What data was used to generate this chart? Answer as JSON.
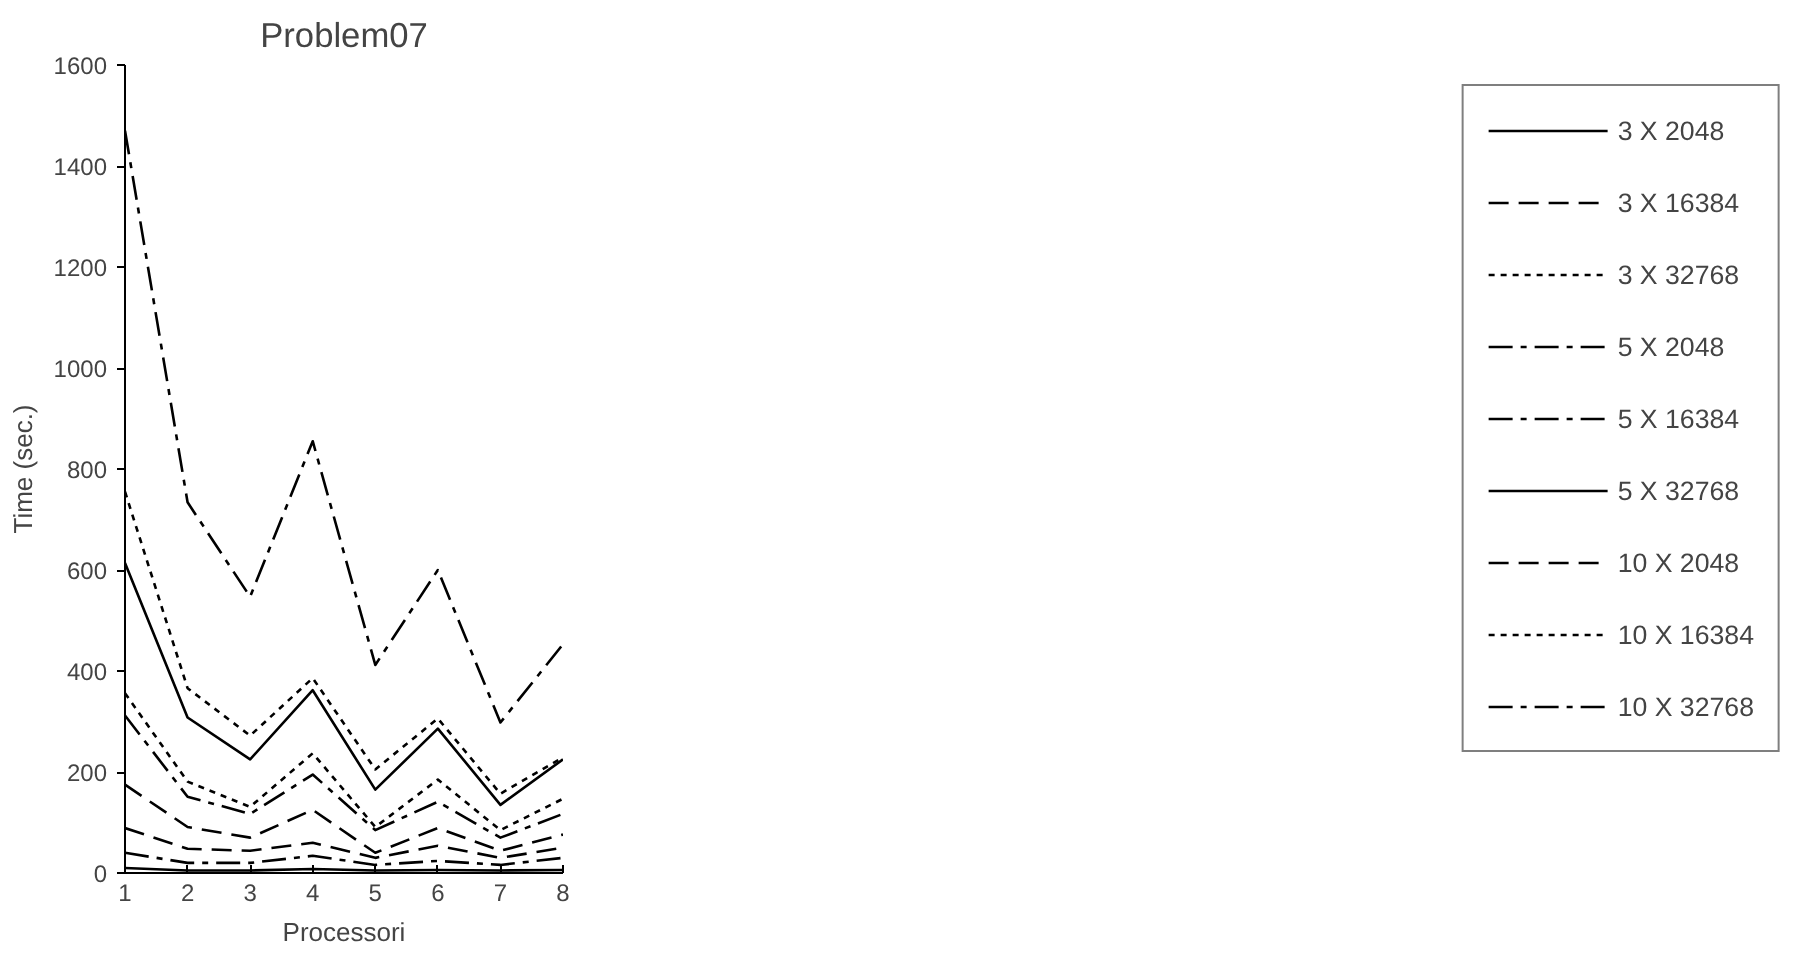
{
  "chart_data": {
    "type": "line",
    "title": "Problem07",
    "xlabel": "Processori",
    "ylabel": "Time (sec.)",
    "x": [
      1,
      2,
      3,
      4,
      5,
      6,
      7,
      8
    ],
    "xlim": [
      1,
      8
    ],
    "xticks": [
      1,
      2,
      3,
      4,
      5,
      6,
      7,
      8
    ],
    "ylim": [
      0,
      1600
    ],
    "yticks": [
      0,
      200,
      400,
      600,
      800,
      1000,
      1200,
      1400,
      1600
    ],
    "grid": false,
    "legend": "right",
    "marker": "none",
    "series": [
      {
        "name": "3 X 2048",
        "color": "#000000",
        "line_style": "solid",
        "values": [
          10,
          5,
          5,
          8,
          5,
          6,
          5,
          6
        ]
      },
      {
        "name": "3 X 16384",
        "color": "#000000",
        "line_style": "dashed",
        "values": [
          89,
          48,
          44,
          60,
          30,
          54,
          30,
          50
        ]
      },
      {
        "name": "3 X 32768",
        "color": "#000000",
        "line_style": "dotted",
        "values": [
          356,
          181,
          131,
          237,
          91,
          185,
          85,
          147
        ]
      },
      {
        "name": "5 X 2048",
        "color": "#000000",
        "line_style": "dashdot",
        "values": [
          40,
          20,
          20,
          34,
          16,
          24,
          16,
          30
        ]
      },
      {
        "name": "5 X 16384",
        "color": "#000000",
        "line_style": "dashdot",
        "values": [
          312,
          151,
          117,
          195,
          85,
          141,
          70,
          117
        ]
      },
      {
        "name": "5 X 32768",
        "color": "#000000",
        "line_style": "solid",
        "values": [
          614,
          308,
          225,
          362,
          165,
          286,
          135,
          225
        ]
      },
      {
        "name": "10 X 2048",
        "color": "#000000",
        "line_style": "dashed",
        "values": [
          175,
          91,
          70,
          125,
          40,
          89,
          44,
          76
        ]
      },
      {
        "name": "10 X 16384",
        "color": "#000000",
        "line_style": "dotted",
        "values": [
          755,
          366,
          272,
          386,
          205,
          306,
          157,
          229
        ]
      },
      {
        "name": "10 X 32768",
        "color": "#000000",
        "line_style": "dashdot",
        "values": [
          1470,
          734,
          547,
          855,
          412,
          600,
          298,
          453
        ]
      }
    ]
  }
}
